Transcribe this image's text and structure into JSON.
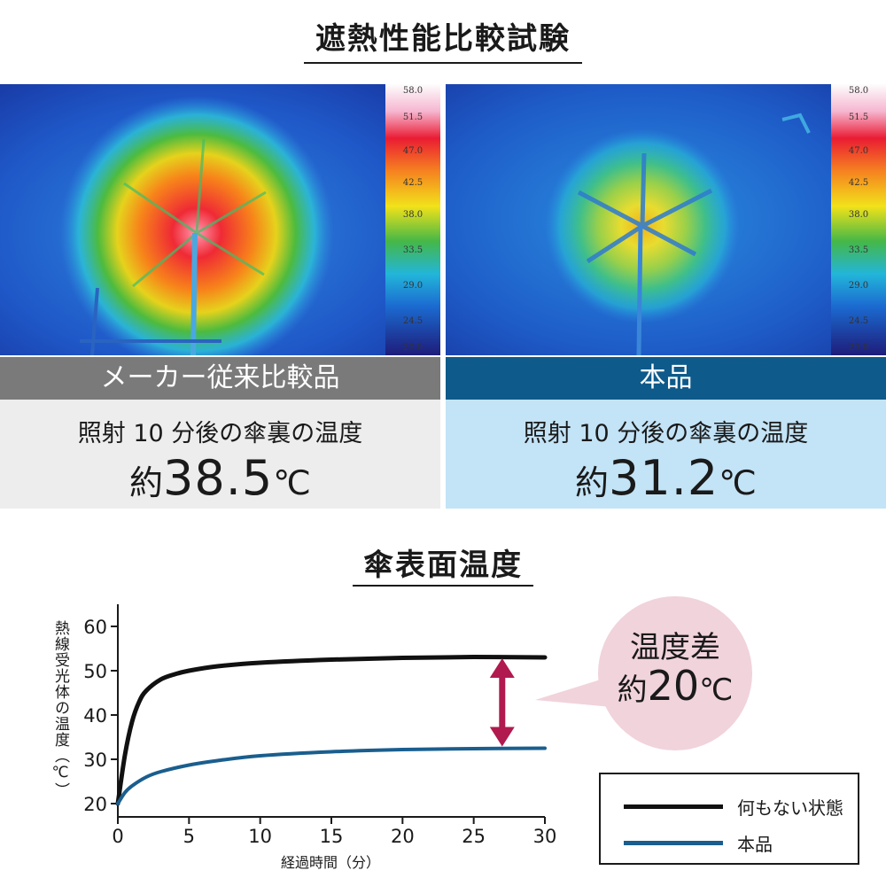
{
  "header": {
    "title": "遮熱性能比較試験"
  },
  "scale_labels": [
    "58.0",
    "51.5",
    "47.0",
    "42.5",
    "38.0",
    "33.5",
    "29.0",
    "24.5",
    "20.0"
  ],
  "left_panel": {
    "label": "メーカー従来比較品",
    "caption": "照射 10 分後の傘裏の温度",
    "prefix": "約",
    "value": "38.5",
    "unit": "℃"
  },
  "right_panel": {
    "label": "本品",
    "caption": "照射 10 分後の傘裏の温度",
    "prefix": "約",
    "value": "31.2",
    "unit": "℃"
  },
  "chart_section": {
    "title": "傘表面温度"
  },
  "callout": {
    "line1": "温度差",
    "prefix": "約",
    "value": "20",
    "unit": "℃"
  },
  "colors": {
    "series_none": "#111111",
    "series_product": "#1a5e8e",
    "arrow": "#b01a4e",
    "callout_bg": "#f1d3dc"
  },
  "chart_data": {
    "type": "line",
    "title": "傘表面温度",
    "xlabel": "経過時間（分）",
    "ylabel": "熱線受光体の温度（℃）",
    "xlim": [
      0,
      30
    ],
    "ylim": [
      17,
      65
    ],
    "xticks": [
      0,
      5,
      10,
      15,
      20,
      25,
      30
    ],
    "yticks": [
      20,
      30,
      40,
      50,
      60
    ],
    "series": [
      {
        "name": "何もない状態",
        "x": [
          0,
          0.5,
          1,
          1.5,
          2,
          3,
          4,
          5,
          7,
          10,
          15,
          20,
          25,
          30
        ],
        "y": [
          20,
          31,
          38.5,
          43,
          45.5,
          48,
          49.2,
          50,
          51,
          51.8,
          52.5,
          52.9,
          53.1,
          53
        ]
      },
      {
        "name": "本品",
        "x": [
          0,
          0.5,
          1,
          2,
          3,
          5,
          7,
          10,
          15,
          20,
          25,
          30
        ],
        "y": [
          20,
          22.5,
          24,
          26,
          27.2,
          28.7,
          29.7,
          30.8,
          31.7,
          32.2,
          32.4,
          32.5
        ]
      }
    ],
    "annotation": {
      "type": "double-arrow",
      "x": 27,
      "y_from": 32.5,
      "y_to": 53.2
    },
    "legend_position": "bottom-right"
  }
}
